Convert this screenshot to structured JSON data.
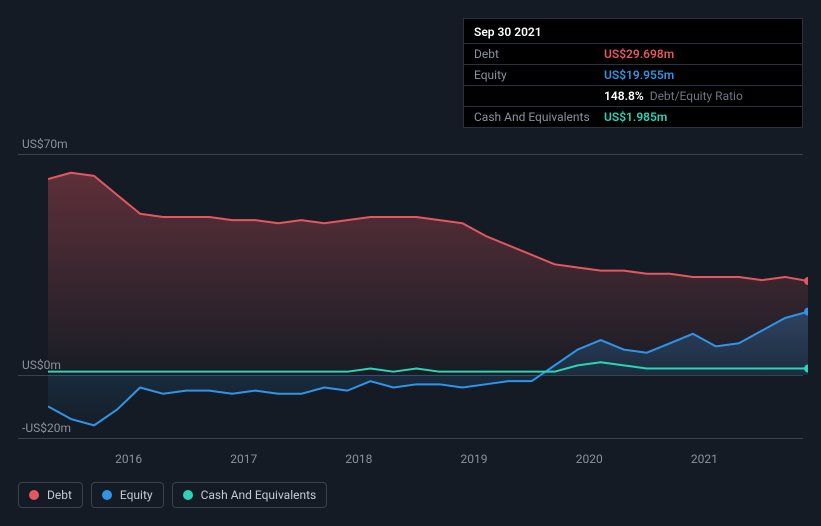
{
  "tooltip": {
    "date": "Sep 30 2021",
    "rows": [
      {
        "label": "Debt",
        "value": "US$29.698m",
        "color": "#e45761"
      },
      {
        "label": "Equity",
        "value": "US$19.955m",
        "color": "#2f95e8"
      },
      {
        "label": "",
        "value": "148.8%",
        "extra": "Debt/Equity Ratio",
        "color": "#ffffff"
      },
      {
        "label": "Cash And Equivalents",
        "value": "US$1.985m",
        "color": "#2bd4b5"
      }
    ]
  },
  "chart": {
    "type": "area",
    "background": "#151b24",
    "grid_color": "#3a424f",
    "label_color": "#8a919e",
    "label_fontsize": 12,
    "y": {
      "min": -20,
      "max": 75,
      "ticks": [
        {
          "v": 70,
          "label": "US$70m"
        },
        {
          "v": 0,
          "label": "US$0m"
        },
        {
          "v": -20,
          "label": "-US$20m"
        }
      ]
    },
    "x": {
      "min": 2015.3,
      "max": 2021.9,
      "ticks": [
        2016,
        2017,
        2018,
        2019,
        2020,
        2021
      ]
    },
    "series": [
      {
        "name": "Debt",
        "color": "#e45761",
        "fill_top": "rgba(228,87,97,0.35)",
        "fill_bottom": "rgba(228,87,97,0.02)",
        "data": [
          [
            2015.3,
            62
          ],
          [
            2015.5,
            64
          ],
          [
            2015.7,
            63
          ],
          [
            2015.9,
            57
          ],
          [
            2016.1,
            51
          ],
          [
            2016.3,
            50
          ],
          [
            2016.5,
            50
          ],
          [
            2016.7,
            50
          ],
          [
            2016.9,
            49
          ],
          [
            2017.1,
            49
          ],
          [
            2017.3,
            48
          ],
          [
            2017.5,
            49
          ],
          [
            2017.7,
            48
          ],
          [
            2017.9,
            49
          ],
          [
            2018.1,
            50
          ],
          [
            2018.3,
            50
          ],
          [
            2018.5,
            50
          ],
          [
            2018.7,
            49
          ],
          [
            2018.9,
            48
          ],
          [
            2019.1,
            44
          ],
          [
            2019.3,
            41
          ],
          [
            2019.5,
            38
          ],
          [
            2019.7,
            35
          ],
          [
            2019.9,
            34
          ],
          [
            2020.1,
            33
          ],
          [
            2020.3,
            33
          ],
          [
            2020.5,
            32
          ],
          [
            2020.7,
            32
          ],
          [
            2020.9,
            31
          ],
          [
            2021.1,
            31
          ],
          [
            2021.3,
            31
          ],
          [
            2021.5,
            30
          ],
          [
            2021.7,
            31
          ],
          [
            2021.9,
            29.7
          ]
        ]
      },
      {
        "name": "Equity",
        "color": "#2f95e8",
        "fill_top": "rgba(47,149,232,0.28)",
        "fill_bottom": "rgba(47,149,232,0.02)",
        "data": [
          [
            2015.3,
            -10
          ],
          [
            2015.5,
            -14
          ],
          [
            2015.7,
            -16
          ],
          [
            2015.9,
            -11
          ],
          [
            2016.1,
            -4
          ],
          [
            2016.3,
            -6
          ],
          [
            2016.5,
            -5
          ],
          [
            2016.7,
            -5
          ],
          [
            2016.9,
            -6
          ],
          [
            2017.1,
            -5
          ],
          [
            2017.3,
            -6
          ],
          [
            2017.5,
            -6
          ],
          [
            2017.7,
            -4
          ],
          [
            2017.9,
            -5
          ],
          [
            2018.1,
            -2
          ],
          [
            2018.3,
            -4
          ],
          [
            2018.5,
            -3
          ],
          [
            2018.7,
            -3
          ],
          [
            2018.9,
            -4
          ],
          [
            2019.1,
            -3
          ],
          [
            2019.3,
            -2
          ],
          [
            2019.5,
            -2
          ],
          [
            2019.7,
            3
          ],
          [
            2019.9,
            8
          ],
          [
            2020.1,
            11
          ],
          [
            2020.3,
            8
          ],
          [
            2020.5,
            7
          ],
          [
            2020.7,
            10
          ],
          [
            2020.9,
            13
          ],
          [
            2021.1,
            9
          ],
          [
            2021.3,
            10
          ],
          [
            2021.5,
            14
          ],
          [
            2021.7,
            18
          ],
          [
            2021.9,
            20
          ]
        ]
      },
      {
        "name": "Cash And Equivalents",
        "color": "#2bd4b5",
        "data": [
          [
            2015.3,
            1
          ],
          [
            2015.5,
            1
          ],
          [
            2015.7,
            1
          ],
          [
            2015.9,
            1
          ],
          [
            2016.1,
            1
          ],
          [
            2016.3,
            1
          ],
          [
            2016.5,
            1
          ],
          [
            2016.7,
            1
          ],
          [
            2016.9,
            1
          ],
          [
            2017.1,
            1
          ],
          [
            2017.3,
            1
          ],
          [
            2017.5,
            1
          ],
          [
            2017.7,
            1
          ],
          [
            2017.9,
            1
          ],
          [
            2018.1,
            2
          ],
          [
            2018.3,
            1
          ],
          [
            2018.5,
            2
          ],
          [
            2018.7,
            1
          ],
          [
            2018.9,
            1
          ],
          [
            2019.1,
            1
          ],
          [
            2019.3,
            1
          ],
          [
            2019.5,
            1
          ],
          [
            2019.7,
            1
          ],
          [
            2019.9,
            3
          ],
          [
            2020.1,
            4
          ],
          [
            2020.3,
            3
          ],
          [
            2020.5,
            2
          ],
          [
            2020.7,
            2
          ],
          [
            2020.9,
            2
          ],
          [
            2021.1,
            2
          ],
          [
            2021.3,
            2
          ],
          [
            2021.5,
            2
          ],
          [
            2021.7,
            2
          ],
          [
            2021.9,
            2
          ]
        ]
      }
    ],
    "legend": [
      {
        "label": "Debt",
        "color": "#e45761"
      },
      {
        "label": "Equity",
        "color": "#2f95e8"
      },
      {
        "label": "Cash And Equivalents",
        "color": "#2bd4b5"
      }
    ]
  }
}
